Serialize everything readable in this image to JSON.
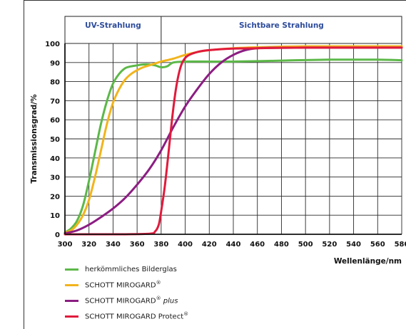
{
  "chart_data": {
    "type": "line",
    "xlabel": "Wellenlänge/nm",
    "ylabel": "Transmissionsgrad/%",
    "xlim": [
      300,
      580
    ],
    "ylim": [
      0,
      100
    ],
    "x_ticks": [
      300,
      320,
      340,
      360,
      380,
      400,
      420,
      440,
      460,
      480,
      500,
      520,
      540,
      560,
      580
    ],
    "y_ticks": [
      0,
      10,
      20,
      30,
      40,
      50,
      60,
      70,
      80,
      90,
      100
    ],
    "grid": true,
    "legend_position": "bottom-left",
    "regions": [
      {
        "label": "UV-Strahlung",
        "from": 300,
        "to": 380
      },
      {
        "label": "Sichtbare Strahlung",
        "from": 380,
        "to": 580
      }
    ],
    "header_color": "#2e4c9c",
    "series": [
      {
        "name": "herkömmliches Bilderglas",
        "color": "#5cb848",
        "x": [
          300,
          305,
          310,
          315,
          320,
          325,
          330,
          335,
          340,
          345,
          350,
          355,
          360,
          365,
          370,
          375,
          380,
          385,
          390,
          400,
          420,
          440,
          460,
          480,
          500,
          520,
          540,
          560,
          580
        ],
        "y": [
          1,
          3,
          7,
          15,
          28,
          43,
          58,
          70,
          79,
          84,
          87,
          88,
          88.5,
          89,
          89,
          88.5,
          87.5,
          88,
          90,
          90.5,
          90.5,
          90.5,
          90.7,
          91,
          91.3,
          91.5,
          91.5,
          91.5,
          91.2
        ]
      },
      {
        "name": "SCHOTT MIROGARD",
        "name_sup": "®",
        "color": "#f2b41c",
        "x": [
          300,
          305,
          310,
          315,
          320,
          325,
          330,
          335,
          340,
          345,
          350,
          355,
          360,
          365,
          370,
          375,
          380,
          390,
          400,
          410,
          420,
          440,
          460,
          480,
          500,
          520,
          540,
          560,
          580
        ],
        "y": [
          1,
          2,
          5,
          10,
          18,
          30,
          44,
          58,
          69,
          76,
          81,
          84,
          86,
          87.5,
          88.5,
          89.5,
          90.5,
          92,
          94,
          95.5,
          96.5,
          97.5,
          98,
          98.3,
          98.5,
          98.5,
          98.5,
          98.5,
          98.5
        ]
      },
      {
        "name": "SCHOTT MIROGARD",
        "name_sup": "®",
        "name_suffix": "plus",
        "color": "#8c1d82",
        "x": [
          300,
          310,
          320,
          330,
          340,
          350,
          360,
          370,
          380,
          390,
          400,
          410,
          420,
          430,
          440,
          450,
          460,
          470,
          480,
          500,
          520,
          540,
          560,
          580
        ],
        "y": [
          0.5,
          2,
          5,
          9,
          13.5,
          19,
          26,
          34,
          44,
          56,
          67,
          76,
          84,
          90,
          94,
          96.5,
          97.5,
          97.7,
          97.7,
          97.8,
          97.8,
          97.8,
          97.8,
          97.8
        ]
      },
      {
        "name": "SCHOTT MIROGARD Protect",
        "name_sup": "®",
        "color": "#e01a3c",
        "x": [
          300,
          340,
          370,
          375,
          378,
          380,
          383,
          386,
          389,
          392,
          395,
          398,
          402,
          410,
          420,
          440,
          460,
          480,
          500,
          520,
          540,
          560,
          580
        ],
        "y": [
          0,
          0,
          0.3,
          1.5,
          5,
          12,
          25,
          42,
          60,
          75,
          85,
          90.5,
          93.5,
          95.5,
          96.5,
          97.3,
          97.5,
          97.7,
          97.8,
          97.8,
          97.8,
          97.8,
          97.8
        ]
      }
    ]
  }
}
